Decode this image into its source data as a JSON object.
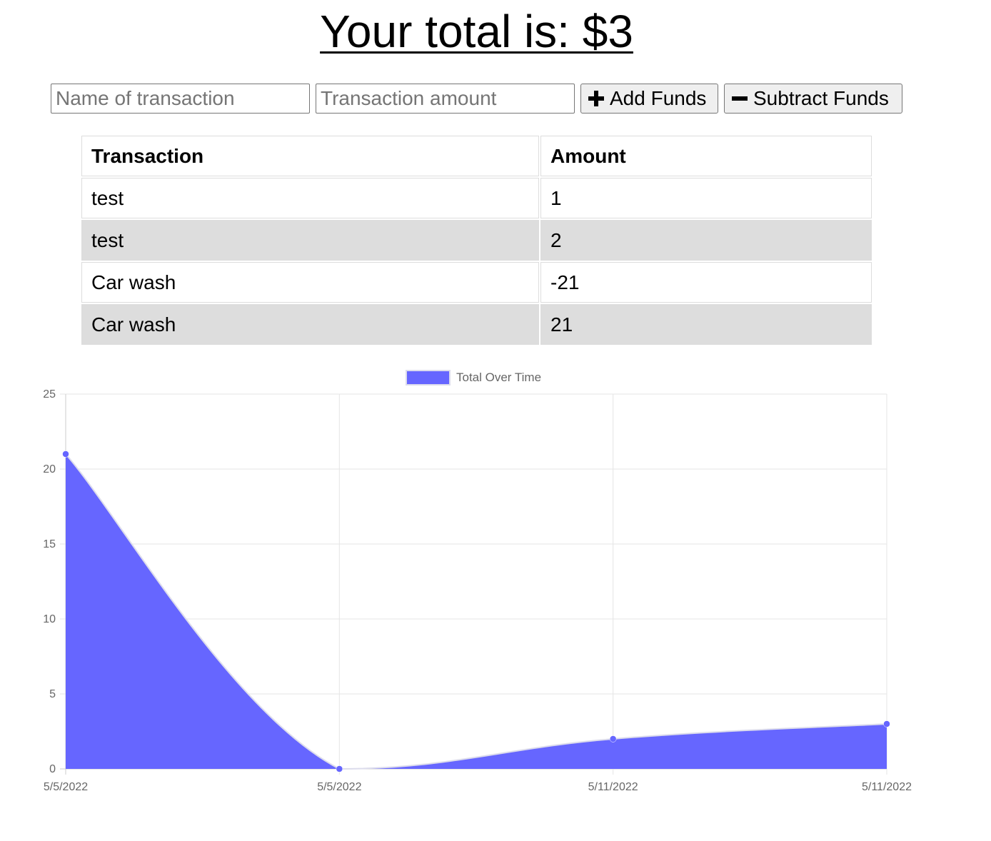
{
  "header": {
    "total_text": "Your total is: $3"
  },
  "form": {
    "name_placeholder": "Name of transaction",
    "amount_placeholder": "Transaction amount",
    "add_label": "Add Funds",
    "subtract_label": "Subtract Funds",
    "add_icon": "plus-icon",
    "subtract_icon": "minus-icon"
  },
  "table": {
    "headers": [
      "Transaction",
      "Amount"
    ],
    "rows": [
      {
        "name": "test",
        "amount": "1"
      },
      {
        "name": "test",
        "amount": "2"
      },
      {
        "name": "Car wash",
        "amount": "-21"
      },
      {
        "name": "Car wash",
        "amount": "21"
      }
    ],
    "alt_row_color": "#dddddd"
  },
  "chart_data": {
    "type": "area",
    "series": [
      {
        "name": "Total Over Time",
        "values": [
          21,
          0,
          2,
          3
        ],
        "color": "#6666ff"
      }
    ],
    "x": [
      "5/5/2022",
      "5/5/2022",
      "5/11/2022",
      "5/11/2022"
    ],
    "ylim": [
      0,
      25
    ],
    "yticks": [
      0,
      5,
      10,
      15,
      20,
      25
    ],
    "grid": true,
    "legend": "top-center",
    "smooth": true
  }
}
